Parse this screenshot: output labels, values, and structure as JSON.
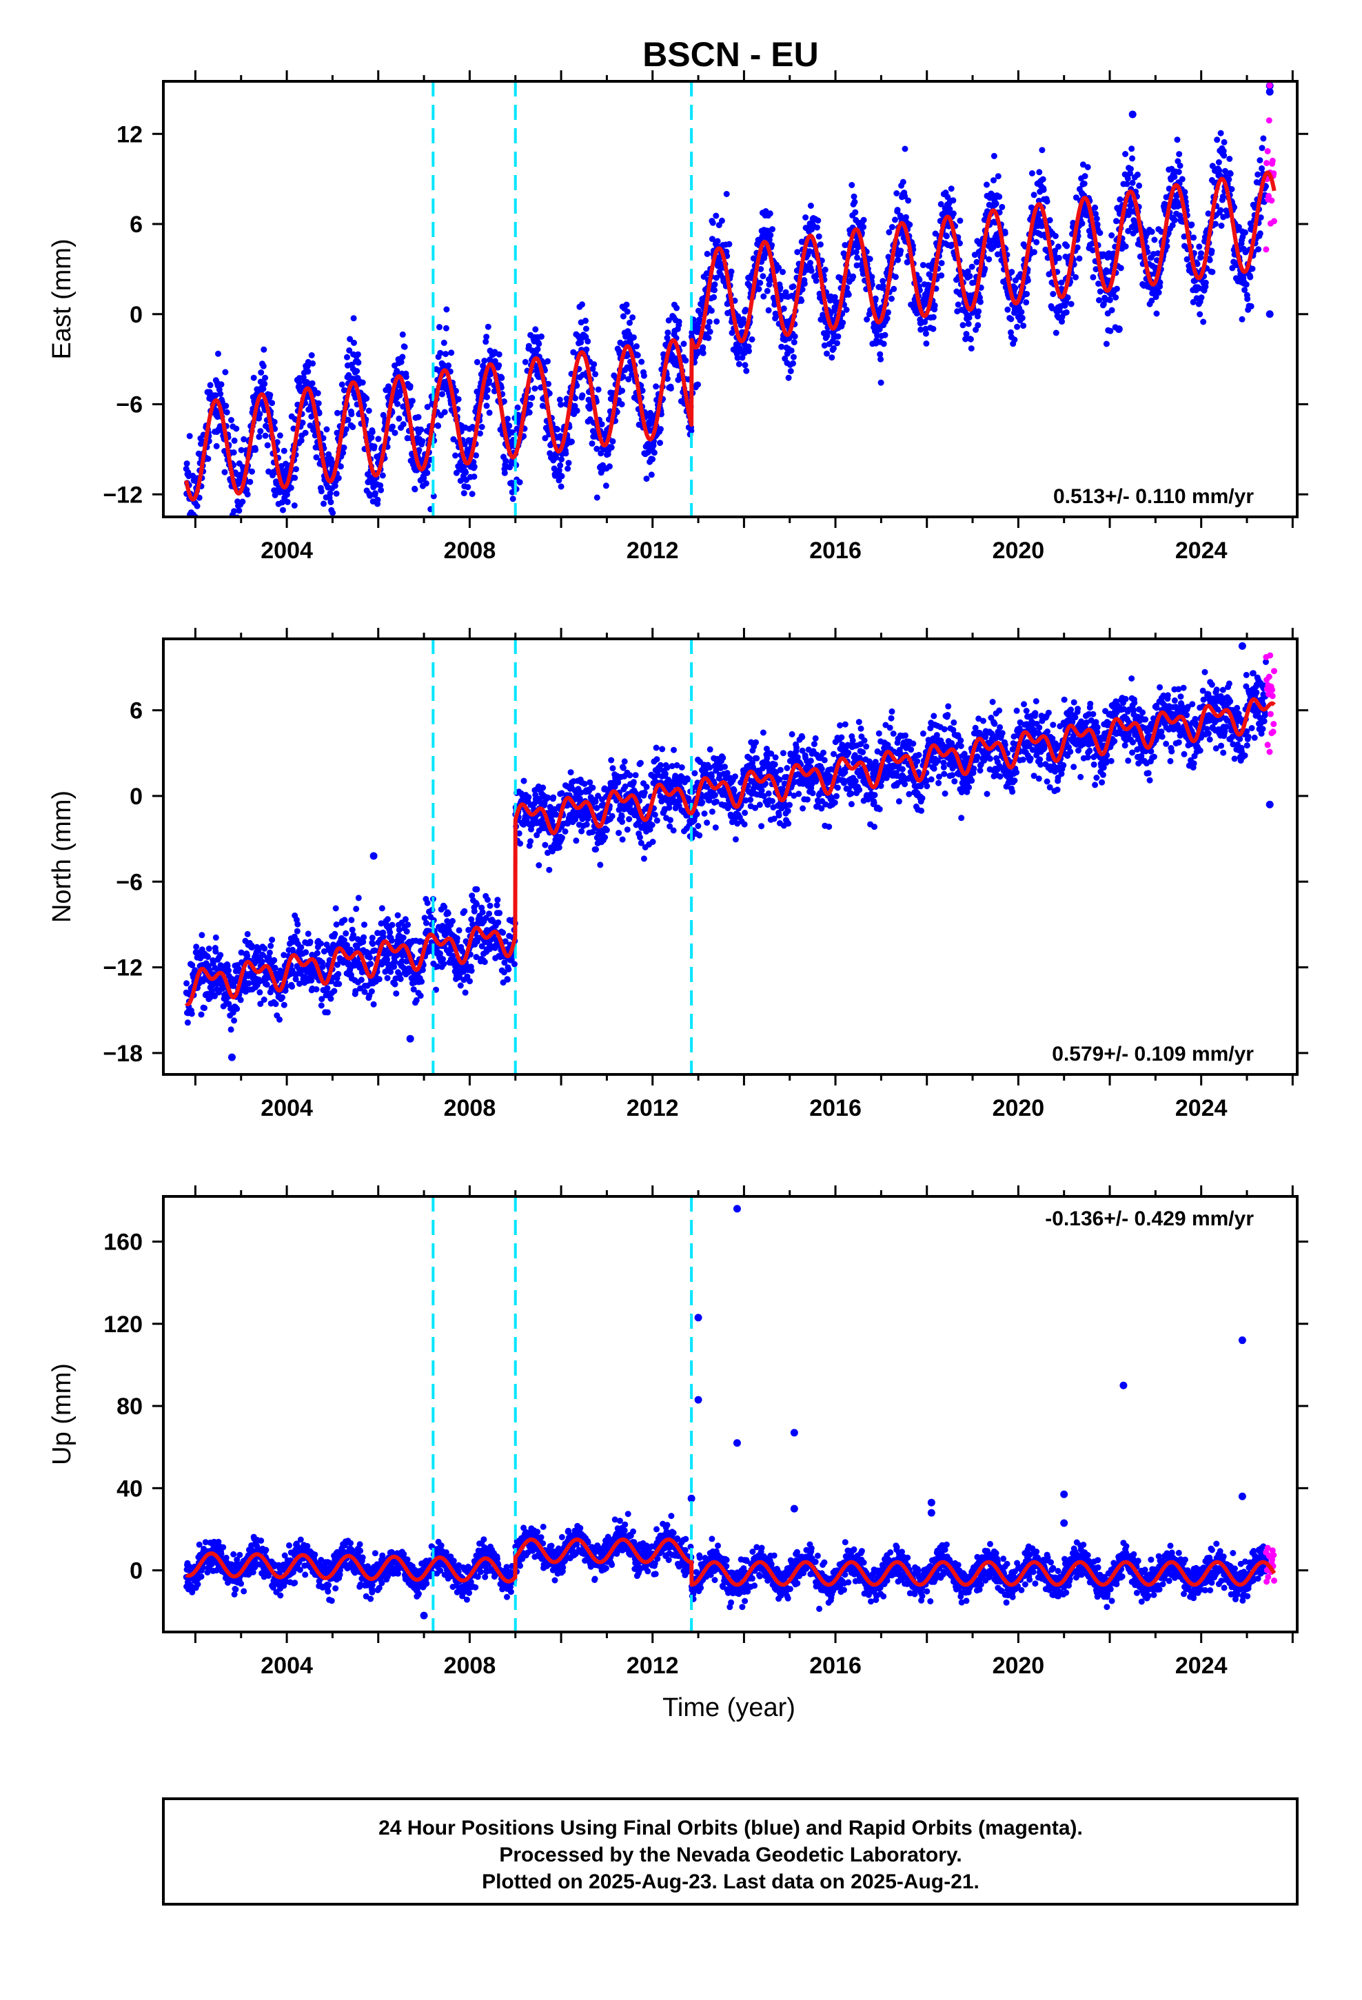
{
  "title": "BSCN - EU",
  "footer": {
    "line1": "24 Hour Positions Using Final Orbits (blue) and Rapid Orbits (magenta).",
    "line2": "Processed by the Nevada Geodetic Laboratory.",
    "line3": "Plotted on 2025-Aug-23. Last data on 2025-Aug-21."
  },
  "colors": {
    "final_orbits": "#0000ff",
    "rapid_orbits": "#ff00ff",
    "model_fit": "#ee1111",
    "event_lines": "#00e5ff"
  },
  "chart_data": [
    {
      "type": "scatter",
      "name": "east",
      "ylabel": "East (mm)",
      "xlabel": "",
      "xlim": [
        2001.3,
        2026.1
      ],
      "ylim": [
        -13.5,
        15.5
      ],
      "x_ticks": [
        2004,
        2008,
        2012,
        2016,
        2020,
        2024
      ],
      "y_ticks": [
        -12,
        -6,
        0,
        6,
        12
      ],
      "rate_text": "0.513+/- 0.110 mm/yr",
      "rate_position": "bottom-right",
      "event_lines": [
        2007.2,
        2009.0,
        2012.85
      ],
      "start": 2001.8,
      "end": 2025.6,
      "rapid_start": 2025.42,
      "segments": [
        {
          "t0": 2001.8,
          "t1": 2012.85,
          "a": -7.0,
          "b": 0.4,
          "tref": 2007.3
        },
        {
          "t0": 2012.85,
          "t1": 2025.6,
          "a": 3.6,
          "b": 0.42,
          "tref": 2019.2
        }
      ],
      "seasonal": [
        {
          "amp": 3.2,
          "period": 1.0,
          "phase": 2002.45
        }
      ],
      "noise": 1.4,
      "outliers": [
        {
          "x": 2022.5,
          "y": 13.3
        },
        {
          "x": 2022.2,
          "y": -1.0
        },
        {
          "x": 2025.5,
          "y": 15.2
        },
        {
          "x": 2025.5,
          "y": 14.8
        },
        {
          "x": 2025.5,
          "y": 0.0
        }
      ]
    },
    {
      "type": "scatter",
      "name": "north",
      "ylabel": "North (mm)",
      "xlabel": "",
      "xlim": [
        2001.3,
        2026.1
      ],
      "ylim": [
        -19.5,
        11.0
      ],
      "x_ticks": [
        2004,
        2008,
        2012,
        2016,
        2020,
        2024
      ],
      "y_ticks": [
        -18,
        -12,
        -6,
        0,
        6
      ],
      "rate_text": "0.579+/- 0.109 mm/yr",
      "rate_position": "bottom-right",
      "event_lines": [
        2007.2,
        2009.0,
        2012.85
      ],
      "start": 2001.8,
      "end": 2025.6,
      "rapid_start": 2025.42,
      "segments": [
        {
          "t0": 2001.8,
          "t1": 2009.0,
          "a": -11.5,
          "b": 0.48,
          "tref": 2005.4
        },
        {
          "t0": 2009.0,
          "t1": 2025.6,
          "a": 2.2,
          "b": 0.46,
          "tref": 2017.3
        }
      ],
      "seasonal": [
        {
          "amp": 0.8,
          "period": 1.0,
          "phase": 2002.3
        },
        {
          "amp": 0.6,
          "period": 0.5,
          "phase": 2002.1
        }
      ],
      "noise": 1.15,
      "outliers": [
        {
          "x": 2002.8,
          "y": -18.3
        },
        {
          "x": 2006.7,
          "y": -17.0
        },
        {
          "x": 2005.9,
          "y": -4.2
        },
        {
          "x": 2024.9,
          "y": 10.5
        },
        {
          "x": 2025.5,
          "y": -0.6
        }
      ]
    },
    {
      "type": "scatter",
      "name": "up",
      "ylabel": "Up (mm)",
      "xlabel": "Time (year)",
      "xlim": [
        2001.3,
        2026.1
      ],
      "ylim": [
        -30,
        182
      ],
      "x_ticks": [
        2004,
        2008,
        2012,
        2016,
        2020,
        2024
      ],
      "y_ticks": [
        0,
        40,
        80,
        120,
        160
      ],
      "rate_text": "-0.136+/- 0.429 mm/yr",
      "rate_position": "top-right",
      "event_lines": [
        2007.2,
        2009.0,
        2012.85
      ],
      "start": 2001.8,
      "end": 2025.6,
      "rapid_start": 2025.42,
      "segments": [
        {
          "t0": 2001.8,
          "t1": 2009.0,
          "a": 1.5,
          "b": -0.4,
          "tref": 2005.4
        },
        {
          "t0": 2009.0,
          "t1": 2012.85,
          "a": 9.5,
          "b": 0.0,
          "tref": 2011.0
        },
        {
          "t0": 2012.85,
          "t1": 2025.6,
          "a": -1.5,
          "b": 0.0,
          "tref": 2019.2
        }
      ],
      "seasonal": [
        {
          "amp": 5.5,
          "period": 1.0,
          "phase": 2002.35
        }
      ],
      "noise": 4.0,
      "outliers": [
        {
          "x": 2013.85,
          "y": 176
        },
        {
          "x": 2013.0,
          "y": 123
        },
        {
          "x": 2013.0,
          "y": 83
        },
        {
          "x": 2013.85,
          "y": 62
        },
        {
          "x": 2015.1,
          "y": 67
        },
        {
          "x": 2015.1,
          "y": 30
        },
        {
          "x": 2018.1,
          "y": 33
        },
        {
          "x": 2018.1,
          "y": 28
        },
        {
          "x": 2021.0,
          "y": 37
        },
        {
          "x": 2021.0,
          "y": 23
        },
        {
          "x": 2022.3,
          "y": 90
        },
        {
          "x": 2024.9,
          "y": 112
        },
        {
          "x": 2024.9,
          "y": 36
        },
        {
          "x": 2012.85,
          "y": 35
        },
        {
          "x": 2007.0,
          "y": -22
        }
      ]
    }
  ]
}
